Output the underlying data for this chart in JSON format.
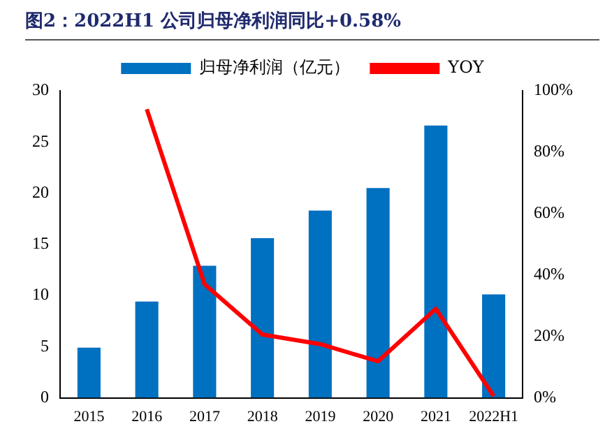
{
  "chart_data": {
    "type": "bar",
    "title": "图2：2022H1 公司归母净利润同比+0.58%",
    "categories": [
      "2015",
      "2016",
      "2017",
      "2018",
      "2019",
      "2020",
      "2021",
      "2022H1"
    ],
    "series": [
      {
        "name": "归母净利润（亿元）",
        "color": "#0070c0",
        "values": [
          4.9,
          9.4,
          12.9,
          15.6,
          18.3,
          20.5,
          26.6,
          10.1
        ]
      },
      {
        "name": "YOY",
        "type": "line",
        "axis": "y2",
        "color": "#ff0000",
        "values": [
          null,
          94,
          37,
          20.6,
          17.5,
          11.9,
          29,
          0.58
        ]
      }
    ],
    "ylim": [
      0,
      30
    ],
    "yticks": [
      0,
      5,
      10,
      15,
      20,
      25,
      30
    ],
    "y2lim": [
      0,
      100
    ],
    "y2ticks": [
      {
        "value": 0,
        "label": "0%"
      },
      {
        "value": 20,
        "label": "20%"
      },
      {
        "value": 40,
        "label": "40%"
      },
      {
        "value": 60,
        "label": "60%"
      },
      {
        "value": 80,
        "label": "80%"
      },
      {
        "value": 100,
        "label": "100%"
      }
    ],
    "grid": false,
    "legend": "top",
    "marker": "none",
    "line_style": "solid"
  }
}
